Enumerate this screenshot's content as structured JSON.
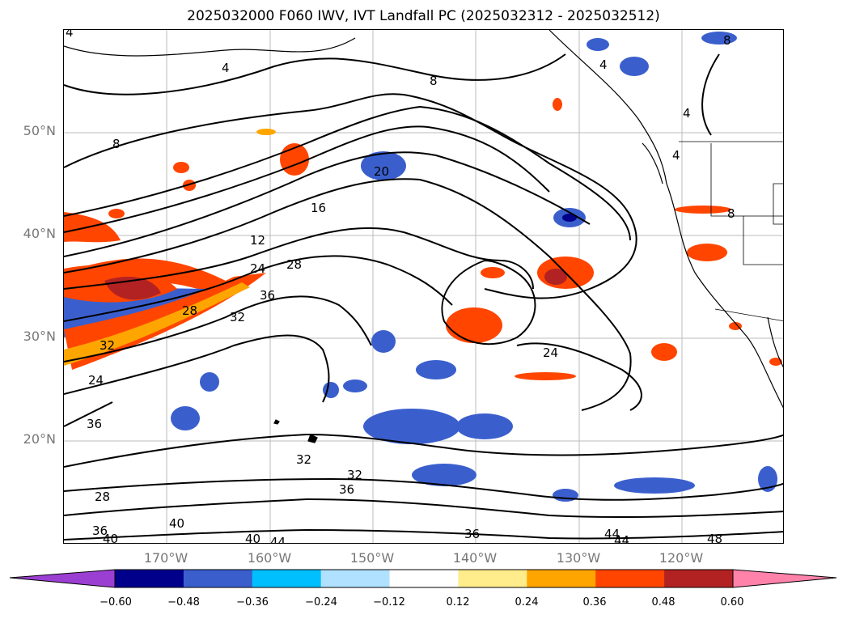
{
  "title": "2025032000 F060 IWV, IVT Landfall PC (2025032312 - 2025032512)",
  "lat_labels": [
    "50°N",
    "40°N",
    "30°N",
    "20°N"
  ],
  "lon_labels": [
    "170°W",
    "160°W",
    "150°W",
    "140°W",
    "130°W",
    "120°W"
  ],
  "colorbar": {
    "ticks": [
      "−0.60",
      "−0.48",
      "−0.36",
      "−0.24",
      "−0.12",
      "0.12",
      "0.24",
      "0.36",
      "0.48",
      "0.60"
    ],
    "colors": [
      "#9b3fd3",
      "#00008b",
      "#3a5fcd",
      "#00bfff",
      "#b0e2ff",
      "#ffffff",
      "#ffec8b",
      "#ffa500",
      "#ff4500",
      "#b22222",
      "#ff82ab"
    ]
  },
  "contour_labels": [
    "4",
    "4",
    "4",
    "4",
    "4",
    "8",
    "8",
    "8",
    "8",
    "12",
    "16",
    "20",
    "24",
    "24",
    "24",
    "28",
    "28",
    "28",
    "32",
    "32",
    "32",
    "32",
    "36",
    "36",
    "36",
    "36",
    "36",
    "40",
    "40",
    "40",
    "44",
    "44",
    "44",
    "48"
  ]
}
